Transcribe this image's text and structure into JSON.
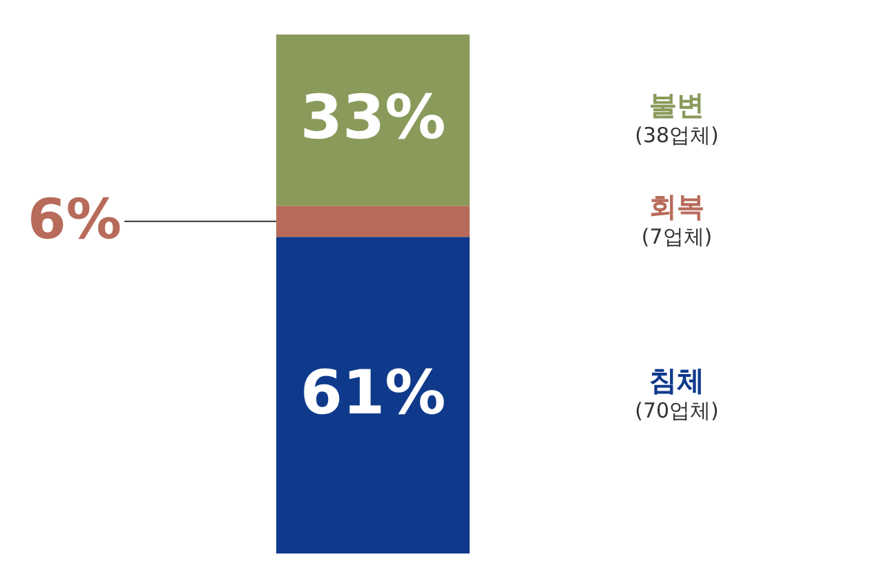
{
  "chart_data": {
    "type": "bar",
    "stacked": true,
    "categories": [
      null
    ],
    "tick_labels": false,
    "legend": false,
    "series": [
      {
        "name": "침체",
        "color": "#0f3a8c",
        "values": [
          61
        ],
        "value_labels": [
          "61%"
        ]
      },
      {
        "name": "회복",
        "color": "#b86b5a",
        "values": [
          6
        ],
        "value_labels": [
          "6%"
        ]
      },
      {
        "name": "불변",
        "color": "#8a9a5b",
        "values": [
          33
        ],
        "value_labels": [
          "33%"
        ]
      }
    ],
    "annotations": [
      "(70업체)",
      "(7업체)",
      "(38업체)"
    ]
  }
}
